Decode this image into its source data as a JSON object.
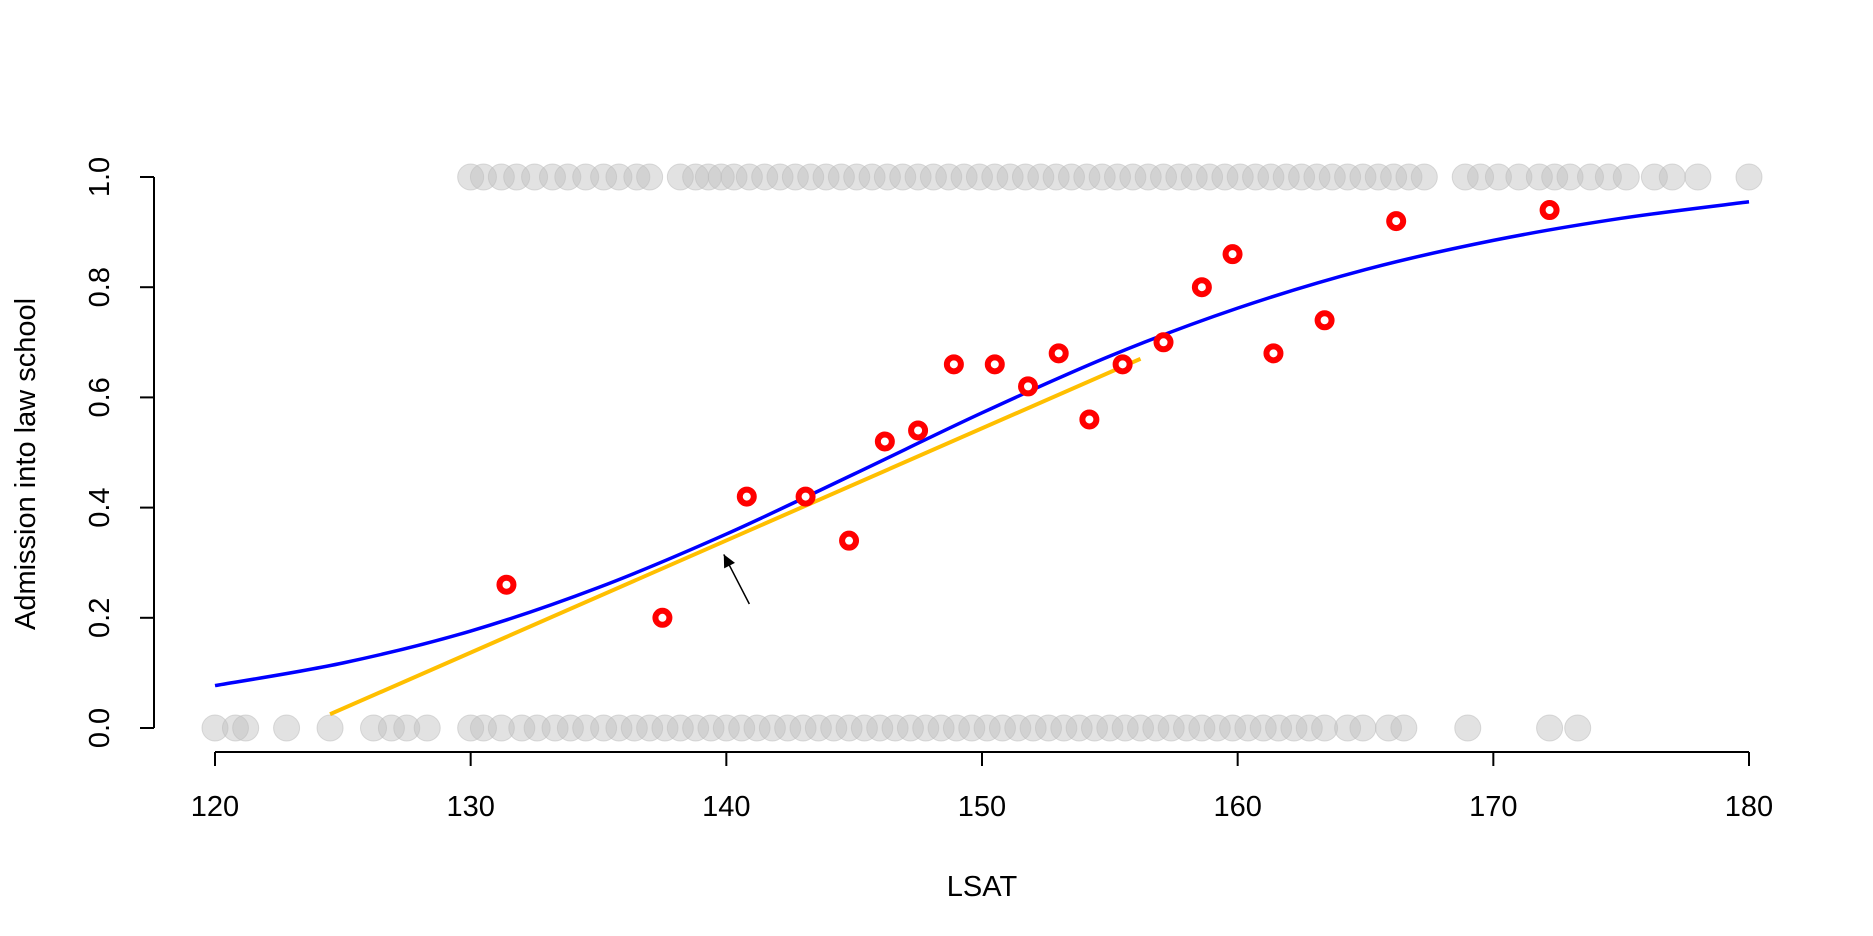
{
  "chart_data": {
    "type": "scatter",
    "xlabel": "LSAT",
    "ylabel": "Admission into law school",
    "xlim": [
      120,
      180
    ],
    "ylim": [
      0,
      1
    ],
    "x_ticks": [
      "120",
      "130",
      "140",
      "150",
      "160",
      "170",
      "180"
    ],
    "y_ticks": [
      "0.0",
      "0.2",
      "0.4",
      "0.6",
      "0.8",
      "1.0"
    ],
    "grid": false,
    "legend": "none",
    "colors": {
      "raw_points": "#BEBEBE",
      "binned_means": "#FF0000",
      "logistic_curve": "#0000FF",
      "linear_fit": "#FFBF00",
      "arrow": "#000000"
    },
    "series": [
      {
        "kind": "raw_points_admitted",
        "x": [
          130,
          130.5,
          131.2,
          131.8,
          132.5,
          133.2,
          133.8,
          134.5,
          135.2,
          135.8,
          136.5,
          137.0,
          138.2,
          138.8,
          139.3,
          139.8,
          140.3,
          140.9,
          141.5,
          142.1,
          142.7,
          143.3,
          143.9,
          144.5,
          145.1,
          145.7,
          146.3,
          146.9,
          147.5,
          148.1,
          148.7,
          149.3,
          149.9,
          150.5,
          151.1,
          151.7,
          152.3,
          152.9,
          153.5,
          154.1,
          154.7,
          155.3,
          155.9,
          156.5,
          157.1,
          157.7,
          158.3,
          158.9,
          159.5,
          160.1,
          160.7,
          161.3,
          161.9,
          162.5,
          163.1,
          163.7,
          164.3,
          164.9,
          165.5,
          166.1,
          166.7,
          167.3,
          168.9,
          169.5,
          170.2,
          171.0,
          171.8,
          172.4,
          173.0,
          173.8,
          174.5,
          175.2,
          176.3,
          177.0,
          178.0,
          180.0
        ],
        "y": 1
      },
      {
        "kind": "raw_points_rejected",
        "x": [
          120.0,
          120.8,
          121.2,
          122.8,
          124.5,
          126.2,
          126.9,
          127.5,
          128.3,
          130.0,
          130.5,
          131.2,
          132.0,
          132.6,
          133.3,
          133.9,
          134.5,
          135.2,
          135.8,
          136.4,
          137.0,
          137.6,
          138.2,
          138.8,
          139.4,
          140.0,
          140.6,
          141.2,
          141.8,
          142.4,
          143.0,
          143.6,
          144.2,
          144.8,
          145.4,
          146.0,
          146.6,
          147.2,
          147.8,
          148.4,
          149.0,
          149.6,
          150.2,
          150.8,
          151.4,
          152.0,
          152.6,
          153.2,
          153.8,
          154.4,
          155.0,
          155.6,
          156.2,
          156.8,
          157.4,
          158.0,
          158.6,
          159.2,
          159.8,
          160.4,
          161.0,
          161.6,
          162.2,
          162.8,
          163.4,
          164.3,
          164.9,
          165.9,
          166.5,
          169.0,
          172.2,
          173.3
        ],
        "y": 0
      },
      {
        "kind": "binned_proportions",
        "x": [
          131.4,
          137.5,
          140.8,
          143.1,
          144.8,
          146.2,
          147.5,
          148.9,
          150.5,
          151.8,
          153.0,
          154.2,
          155.5,
          157.1,
          158.6,
          159.8,
          161.4,
          163.4,
          166.2,
          172.2
        ],
        "y": [
          0.26,
          0.2,
          0.42,
          0.42,
          0.34,
          0.52,
          0.54,
          0.66,
          0.66,
          0.62,
          0.68,
          0.56,
          0.66,
          0.7,
          0.8,
          0.86,
          0.68,
          0.74,
          0.92,
          0.94
        ]
      },
      {
        "kind": "logistic_fit",
        "x": [
          120,
          125,
          130,
          135,
          140,
          145,
          150,
          155,
          160,
          165,
          170,
          175,
          180
        ],
        "y": [
          0.077,
          0.118,
          0.176,
          0.255,
          0.352,
          0.461,
          0.572,
          0.675,
          0.762,
          0.832,
          0.885,
          0.925,
          0.955
        ]
      },
      {
        "kind": "linear_fit",
        "x": [
          124.5,
          156.2
        ],
        "y": [
          0.025,
          0.67
        ]
      }
    ],
    "annotations": [
      {
        "kind": "arrow",
        "from": [
          140.9,
          0.225
        ],
        "to": [
          139.9,
          0.315
        ]
      }
    ]
  }
}
